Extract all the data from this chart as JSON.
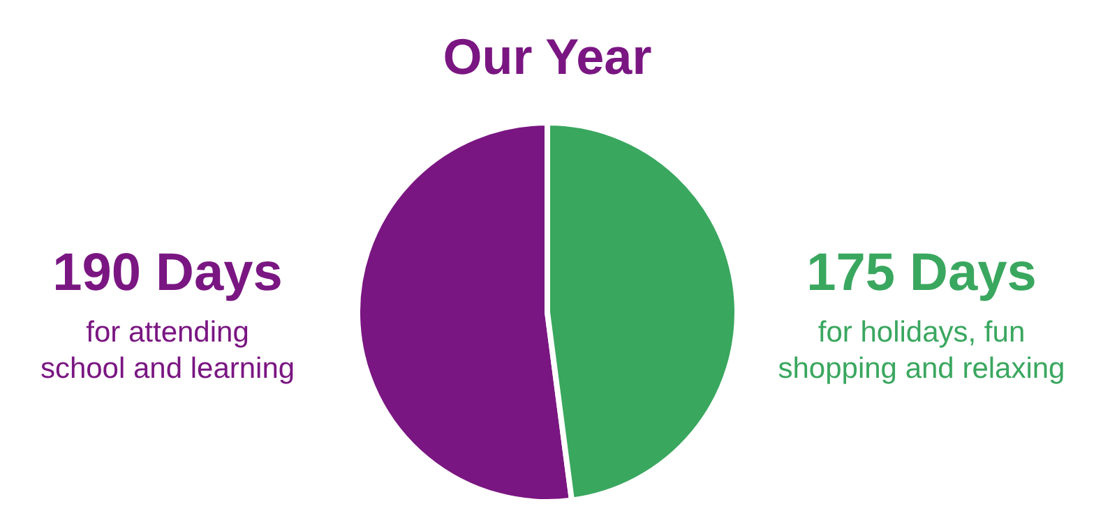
{
  "chart_data": {
    "type": "pie",
    "title": "Our Year",
    "categories": [
      "for attending\nschool and learning",
      "for holidays, fun\nshopping and relaxing"
    ],
    "values": [
      190,
      175
    ],
    "colors": [
      "#7a1682",
      "#3aa75f"
    ],
    "value_labels": [
      "190 Days",
      "175 Days"
    ]
  }
}
